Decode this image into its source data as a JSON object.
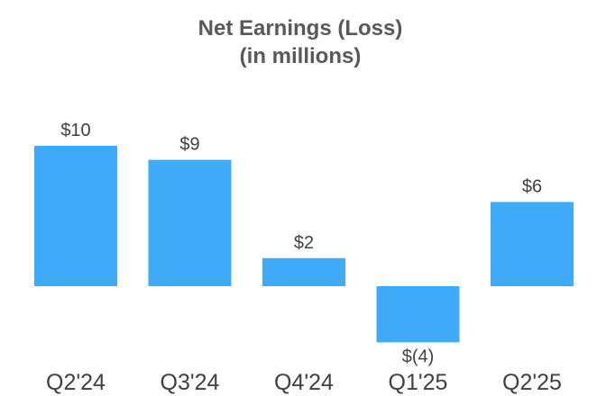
{
  "chart_data": {
    "type": "bar",
    "title_lines": [
      "Net Earnings (Loss)",
      "(in millions)"
    ],
    "categories": [
      "Q2'24",
      "Q3'24",
      "Q4'24",
      "Q1'25",
      "Q2'25"
    ],
    "values": [
      10,
      9,
      2,
      -4,
      6
    ],
    "data_labels": [
      "$10",
      "$9",
      "$2",
      "$(4)",
      "$6"
    ],
    "xlabel": "",
    "ylabel": "",
    "ylim": [
      -4,
      10
    ],
    "grid": false,
    "legend": "none",
    "bar_color": "#3FAAF8"
  }
}
